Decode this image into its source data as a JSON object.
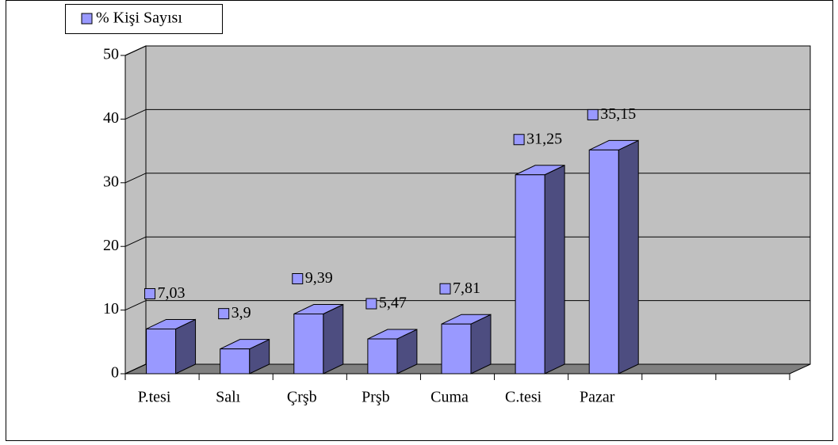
{
  "chart_data": {
    "type": "bar",
    "categories": [
      "P.tesi",
      "Salı",
      "Çrşb",
      "Prşb",
      "Cuma",
      "C.tesi",
      "Pazar",
      null,
      null
    ],
    "series": [
      {
        "name": "% Kişi Sayısı",
        "color": "#9999ff",
        "values": [
          7.03,
          3.9,
          9.39,
          5.47,
          7.81,
          31.25,
          35.15,
          null,
          null
        ],
        "value_labels": [
          "7,03",
          "3,9",
          "9,39",
          "5,47",
          "7,81",
          "31,25",
          "35,15",
          null,
          null
        ]
      }
    ],
    "ylim": [
      0,
      50
    ],
    "yticks": [
      0,
      10,
      20,
      30,
      40,
      50
    ],
    "grid": true,
    "legend": "top-left"
  }
}
